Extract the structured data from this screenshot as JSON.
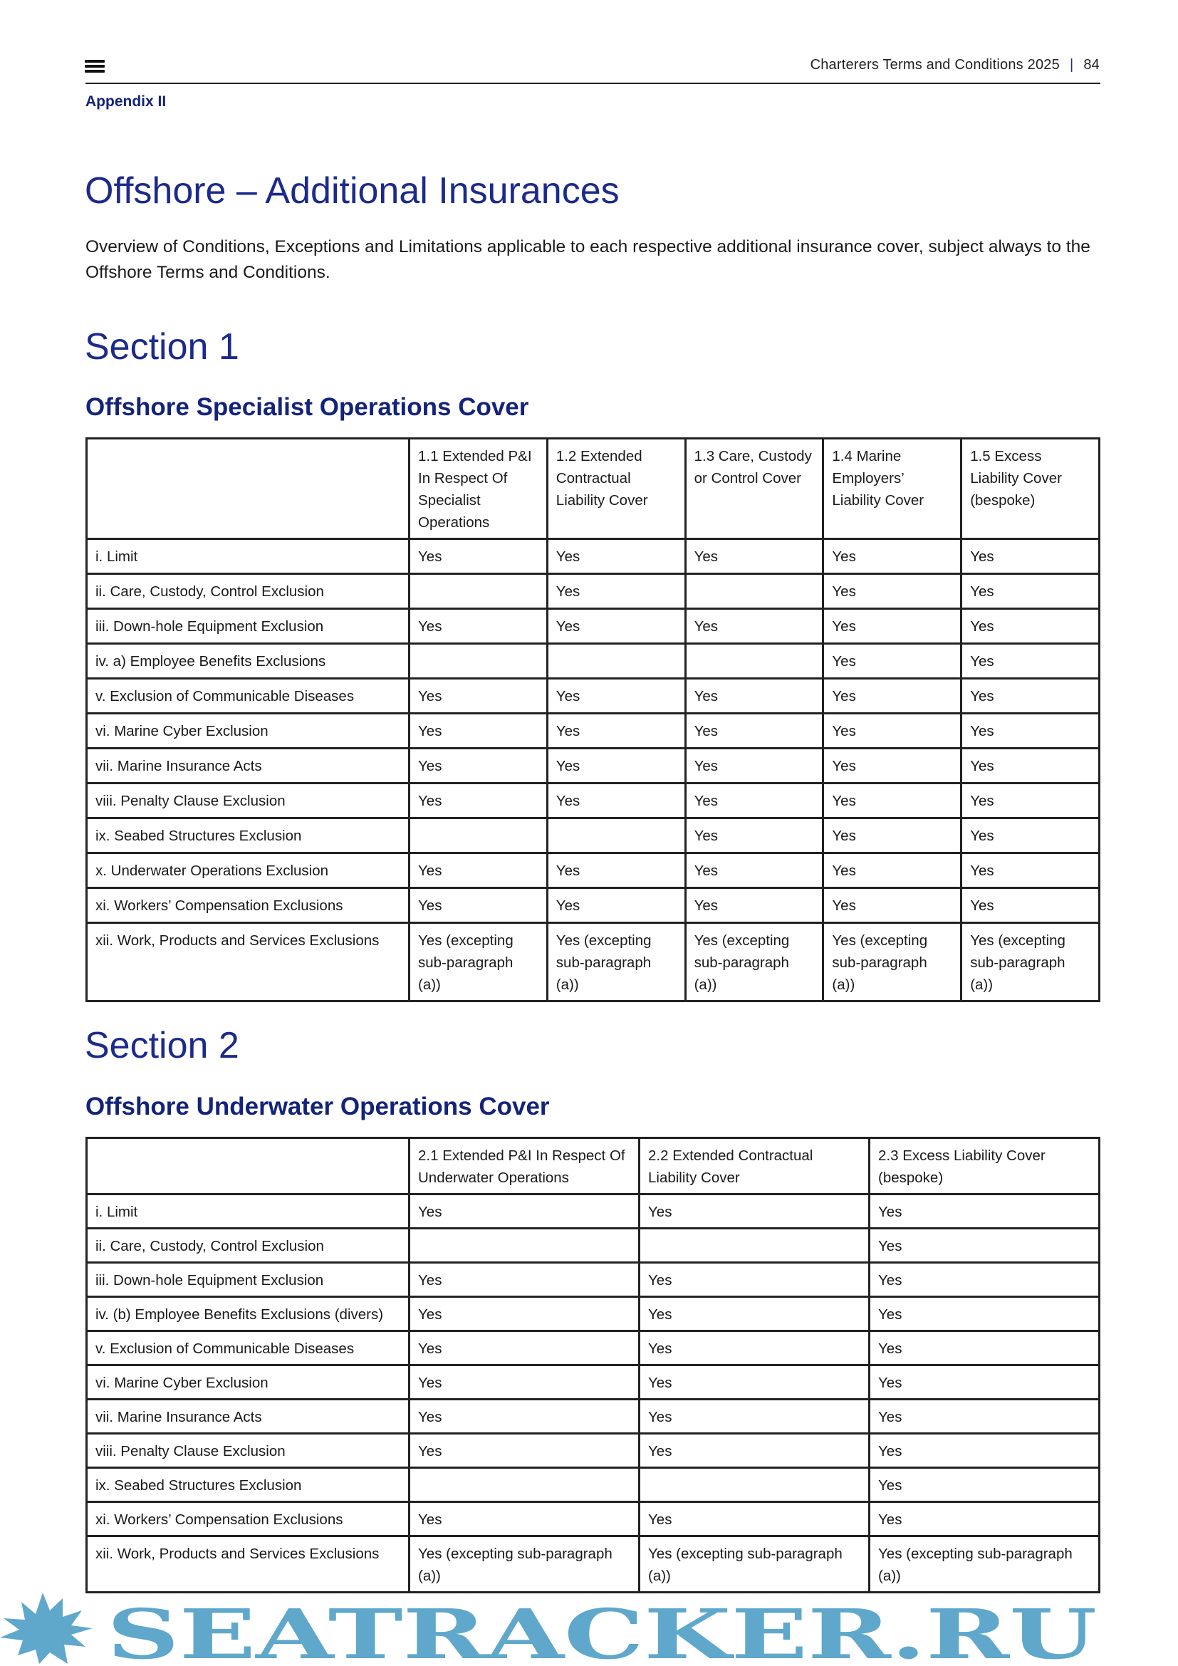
{
  "header": {
    "running_title": "Charterers Terms and Conditions 2025",
    "page_number": "84",
    "appendix": "Appendix II"
  },
  "title": "Offshore – Additional Insurances",
  "intro": "Overview of Conditions, Exceptions and Limitations applicable to each respective additional insurance cover, subject always to the Offshore Terms and Conditions.",
  "section1": {
    "heading": "Section 1",
    "subtitle": "Offshore Specialist Operations Cover",
    "columns": [
      "",
      "1.1 Extended P&I In Respect Of Specialist Operations",
      "1.2 Extended Contractual Liability Cover",
      "1.3 Care, Custody or Control Cover",
      "1.4 Marine Employers’ Liability Cover",
      "1.5 Excess Liability Cover (bespoke)"
    ],
    "rows": [
      [
        "i. Limit",
        "Yes",
        "Yes",
        "Yes",
        "Yes",
        "Yes"
      ],
      [
        "ii. Care, Custody, Control Exclusion",
        "",
        "Yes",
        "",
        "Yes",
        "Yes"
      ],
      [
        "iii. Down-hole Equipment Exclusion",
        "Yes",
        "Yes",
        "Yes",
        "Yes",
        "Yes"
      ],
      [
        "iv. a) Employee Benefits Exclusions",
        "",
        "",
        "",
        "Yes",
        "Yes"
      ],
      [
        "v. Exclusion of Communicable Diseases",
        "Yes",
        "Yes",
        "Yes",
        "Yes",
        "Yes"
      ],
      [
        "vi. Marine Cyber Exclusion",
        "Yes",
        "Yes",
        "Yes",
        "Yes",
        "Yes"
      ],
      [
        "vii. Marine Insurance Acts",
        "Yes",
        "Yes",
        "Yes",
        "Yes",
        "Yes"
      ],
      [
        "viii. Penalty Clause Exclusion",
        "Yes",
        "Yes",
        "Yes",
        "Yes",
        "Yes"
      ],
      [
        "ix. Seabed Structures Exclusion",
        "",
        "",
        "Yes",
        "Yes",
        "Yes"
      ],
      [
        "x. Underwater Operations Exclusion",
        "Yes",
        "Yes",
        "Yes",
        "Yes",
        "Yes"
      ],
      [
        "xi. Workers’ Compensation Exclusions",
        "Yes",
        "Yes",
        "Yes",
        "Yes",
        "Yes"
      ],
      [
        "xii. Work, Products and Services Exclusions",
        "Yes (excepting sub-paragraph (a))",
        "Yes (excepting sub-paragraph (a))",
        "Yes (excepting sub-paragraph (a))",
        "Yes (excepting sub-paragraph (a))",
        "Yes (excepting sub-paragraph (a))"
      ]
    ]
  },
  "section2": {
    "heading": "Section 2",
    "subtitle": "Offshore Underwater Operations Cover",
    "columns": [
      "",
      "2.1 Extended P&I In Respect Of Underwater Operations",
      "2.2 Extended Contractual Liability Cover",
      "2.3 Excess Liability Cover (bespoke)"
    ],
    "rows": [
      [
        "i. Limit",
        "Yes",
        "Yes",
        "Yes"
      ],
      [
        "ii. Care, Custody, Control Exclusion",
        "",
        "",
        "Yes"
      ],
      [
        "iii. Down-hole Equipment Exclusion",
        "Yes",
        "Yes",
        "Yes"
      ],
      [
        "iv. (b) Employee Benefits Exclusions (divers)",
        "Yes",
        "Yes",
        "Yes"
      ],
      [
        "v. Exclusion of Communicable Diseases",
        "Yes",
        "Yes",
        "Yes"
      ],
      [
        "vi. Marine Cyber Exclusion",
        "Yes",
        "Yes",
        "Yes"
      ],
      [
        "vii. Marine Insurance Acts",
        "Yes",
        "Yes",
        "Yes"
      ],
      [
        "viii. Penalty Clause Exclusion",
        "Yes",
        "Yes",
        "Yes"
      ],
      [
        "ix. Seabed Structures Exclusion",
        "",
        "",
        "Yes"
      ],
      [
        "xi. Workers’ Compensation Exclusions",
        "Yes",
        "Yes",
        "Yes"
      ],
      [
        "xii. Work, Products and Services Exclusions",
        "Yes (excepting sub-paragraph (a))",
        "Yes (excepting sub-paragraph (a))",
        "Yes (excepting sub-paragraph (a))"
      ]
    ]
  },
  "watermark": {
    "text": "SEATRACKER.RU",
    "color": "#5fa8cc"
  },
  "colors": {
    "heading": "#1b2a8c",
    "text": "#1a1a1a"
  }
}
